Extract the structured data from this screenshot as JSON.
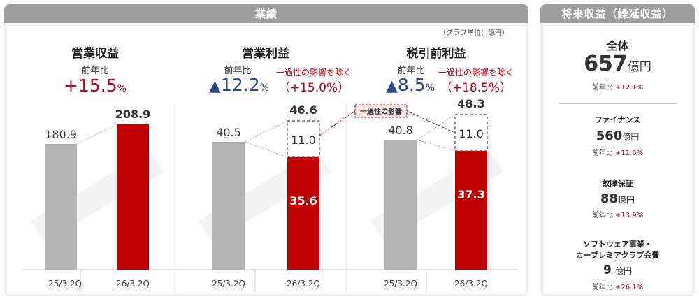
{
  "main_header": "業績",
  "side_header": "将来収益（繰延収益）",
  "unit_note": "（グラフ単位：億円）",
  "bridge_label": "一過性の影響",
  "columns": [
    {
      "title": "営業収益",
      "yoy_label": "前年比",
      "yoy_prefix": "+",
      "yoy_value": "15.5",
      "yoy_pct": "%"
    },
    {
      "title": "営業利益",
      "yoy_label": "前年比",
      "yoy_prefix": "▲",
      "yoy_value": "12.2",
      "yoy_pct": "%",
      "excl_label": "一過性の影響を除く",
      "excl_value": "（+15.0%）"
    },
    {
      "title": "税引前利益",
      "yoy_label": "前年比",
      "yoy_prefix": "▲",
      "yoy_value": "8.5",
      "yoy_pct": "%",
      "excl_label": "一過性の影響を除く",
      "excl_value": "（+18.5%）"
    }
  ],
  "chart_data": [
    {
      "type": "bar",
      "title": "営業収益",
      "categories": [
        "25/3.2Q",
        "26/3.2Q"
      ],
      "values": [
        180.9,
        208.9
      ],
      "value_labels": [
        "180.9",
        "208.9"
      ],
      "colors": [
        "#b3b3b3",
        "#c00000"
      ]
    },
    {
      "type": "bar",
      "title": "営業利益",
      "categories": [
        "25/3.2Q",
        "26/3.2Q"
      ],
      "values": [
        40.5,
        46.6
      ],
      "value_labels": [
        "40.5",
        "46.6"
      ],
      "segments_current": {
        "base": 35.6,
        "one_time": 11.0
      },
      "segment_labels": [
        "35.6",
        "11.0"
      ],
      "colors": [
        "#b3b3b3",
        "#c00000"
      ]
    },
    {
      "type": "bar",
      "title": "税引前利益",
      "categories": [
        "25/3.2Q",
        "26/3.2Q"
      ],
      "values": [
        40.8,
        48.3
      ],
      "value_labels": [
        "40.8",
        "48.3"
      ],
      "segments_current": {
        "base": 37.3,
        "one_time": 11.0
      },
      "segment_labels": [
        "37.3",
        "11.0"
      ],
      "colors": [
        "#b3b3b3",
        "#c00000"
      ]
    }
  ],
  "side": {
    "total": {
      "title": "全体",
      "value": "657",
      "unit": "億円",
      "yoy_label": "前年比",
      "yoy_pct": "+12.1%"
    },
    "items": [
      {
        "title": "ファイナンス",
        "value": "560",
        "unit": "億円",
        "yoy_label": "前年比",
        "yoy_pct": "+11.6%"
      },
      {
        "title": "故障保証",
        "value": "88",
        "unit": "億円",
        "yoy_label": "前年比",
        "yoy_pct": "+13.9%"
      },
      {
        "title_line1": "ソフトウェア事業・",
        "title_line2": "カープレミアクラブ会費",
        "value": "9",
        "unit": "億円",
        "yoy_label": "前年比",
        "yoy_pct": "+26.1%"
      }
    ]
  }
}
